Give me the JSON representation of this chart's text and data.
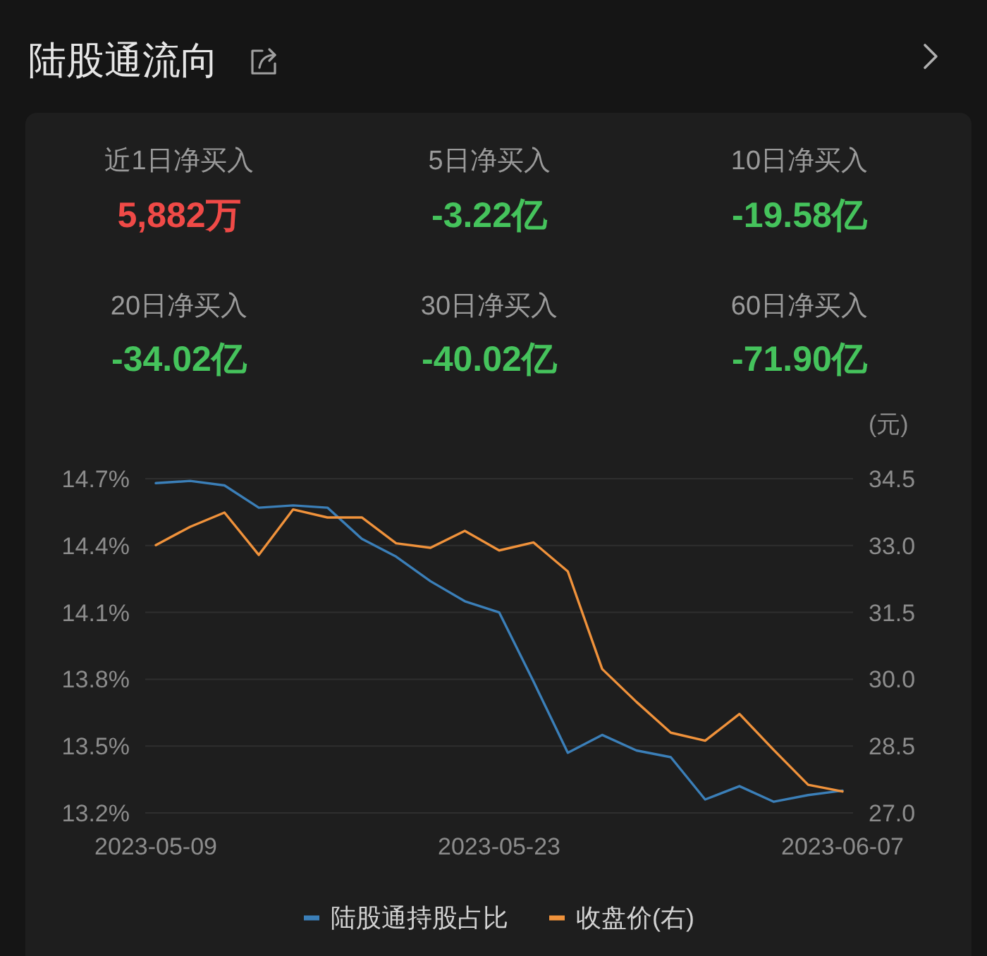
{
  "chart_data": [
    {
      "type": "other",
      "title": "陆股通流向",
      "categories": [
        "近1日净买入",
        "5日净买入",
        "10日净买入",
        "20日净买入",
        "30日净买入",
        "60日净买入"
      ],
      "value_labels": [
        "5,882万",
        "-3.22亿",
        "-19.58亿",
        "-34.02亿",
        "-40.02亿",
        "-71.90亿"
      ],
      "colors": [
        "#f04a47",
        "#45c35c",
        "#45c35c",
        "#45c35c",
        "#45c35c",
        "#45c35c"
      ]
    },
    {
      "type": "line",
      "categories": [
        "2023-05-09",
        null,
        null,
        null,
        null,
        null,
        null,
        null,
        null,
        null,
        "2023-05-23",
        null,
        null,
        null,
        null,
        null,
        null,
        null,
        null,
        null,
        "2023-06-07"
      ],
      "series": [
        {
          "name": "陆股通持股占比",
          "color": "#3b7fb8",
          "values": [
            14.68,
            14.69,
            14.67,
            14.57,
            14.58,
            14.57,
            14.43,
            14.35,
            14.24,
            14.15,
            14.1,
            13.79,
            13.47,
            13.55,
            13.48,
            13.45,
            13.26,
            13.32,
            13.25,
            13.28,
            13.3
          ]
        },
        {
          "name": "收盘价(右)",
          "color": "#f0923b",
          "axis": "y2",
          "values": [
            33.01,
            33.42,
            33.74,
            32.79,
            33.81,
            33.63,
            33.63,
            33.05,
            32.95,
            33.33,
            32.89,
            33.07,
            32.42,
            30.23,
            29.49,
            28.8,
            28.62,
            29.22,
            28.41,
            27.63,
            27.48
          ]
        }
      ],
      "ylim": [
        13.2,
        14.7
      ],
      "yticks": [
        {
          "value": 13.2,
          "label": "13.2%"
        },
        {
          "value": 13.5,
          "label": "13.5%"
        },
        {
          "value": 13.8,
          "label": "13.8%"
        },
        {
          "value": 14.1,
          "label": "14.1%"
        },
        {
          "value": 14.4,
          "label": "14.4%"
        },
        {
          "value": 14.7,
          "label": "14.7%"
        }
      ],
      "y2lim": [
        27,
        34.5
      ],
      "y2ticks": [
        {
          "value": 27,
          "label": "27.0"
        },
        28.5,
        {
          "value": 30,
          "label": "30.0"
        },
        31.5,
        {
          "value": 33,
          "label": "33.0"
        },
        34.5
      ],
      "y2label": "(元)",
      "grid": "y",
      "legend": "bottom",
      "marker": "none",
      "line_style": "solid"
    }
  ]
}
